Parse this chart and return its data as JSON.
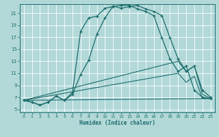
{
  "xlabel": "Humidex (Indice chaleur)",
  "bg_color": "#b2d8d8",
  "grid_color": "#ffffff",
  "line_color": "#1a6b6b",
  "xlim": [
    -0.5,
    23.5
  ],
  "ylim": [
    4.5,
    22.5
  ],
  "xticks": [
    0,
    1,
    2,
    3,
    4,
    5,
    6,
    7,
    8,
    9,
    10,
    11,
    12,
    13,
    14,
    15,
    16,
    17,
    18,
    19,
    20,
    21,
    22,
    23
  ],
  "yticks": [
    5,
    7,
    9,
    11,
    13,
    15,
    17,
    19,
    21
  ],
  "curve1_x": [
    0,
    1,
    2,
    3,
    4,
    5,
    6,
    7,
    8,
    9,
    10,
    11,
    12,
    13,
    14,
    15,
    16,
    17,
    18,
    19,
    20,
    21,
    22,
    23
  ],
  "curve1_y": [
    6.5,
    6.2,
    5.7,
    6.2,
    7.2,
    6.5,
    7.5,
    10.8,
    13.2,
    17.5,
    20.2,
    22.2,
    21.8,
    22.1,
    22.3,
    21.7,
    21.3,
    20.6,
    16.9,
    13.4,
    11.3,
    12.2,
    8.2,
    7.0
  ],
  "curve2_x": [
    0,
    1,
    2,
    3,
    4,
    5,
    6,
    7,
    8,
    9,
    10,
    11,
    12,
    13,
    14,
    15,
    16,
    17,
    18,
    19,
    20,
    21,
    22,
    23
  ],
  "curve2_y": [
    6.5,
    6.2,
    5.7,
    6.2,
    7.2,
    6.5,
    7.8,
    18.0,
    20.2,
    20.5,
    21.8,
    22.1,
    22.3,
    22.3,
    21.7,
    21.3,
    20.6,
    16.9,
    13.4,
    11.3,
    12.2,
    8.2,
    7.0,
    6.8
  ],
  "line1_x": [
    0,
    19,
    20,
    21,
    22,
    23
  ],
  "line1_y": [
    6.5,
    13.0,
    11.3,
    12.2,
    7.5,
    6.8
  ],
  "line2_x": [
    0,
    19,
    20,
    21,
    22,
    23
  ],
  "line2_y": [
    6.5,
    11.0,
    9.5,
    10.5,
    6.8,
    6.8
  ],
  "line3_x": [
    0,
    23
  ],
  "line3_y": [
    6.5,
    6.8
  ]
}
